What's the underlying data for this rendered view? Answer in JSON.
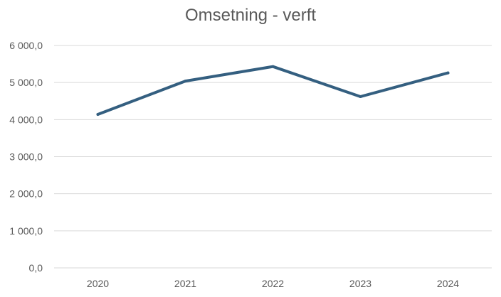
{
  "chart_data": {
    "type": "line",
    "title": "Omsetning - verft",
    "categories": [
      "2020",
      "2021",
      "2022",
      "2023",
      "2024"
    ],
    "series": [
      {
        "values": [
          4140,
          5040,
          5430,
          4620,
          5260
        ]
      }
    ],
    "ylim": [
      0,
      6000
    ],
    "yticks": [
      0,
      1000,
      2000,
      3000,
      4000,
      5000,
      6000
    ],
    "ytick_labels": [
      "0,0",
      "1 000,0",
      "2 000,0",
      "3 000,0",
      "4 000,0",
      "5 000,0",
      "6 000,0"
    ],
    "grid": true,
    "legend": "none",
    "colors": {
      "line": "#345f80",
      "grid": "#d9d9d9",
      "text": "#595959"
    }
  }
}
